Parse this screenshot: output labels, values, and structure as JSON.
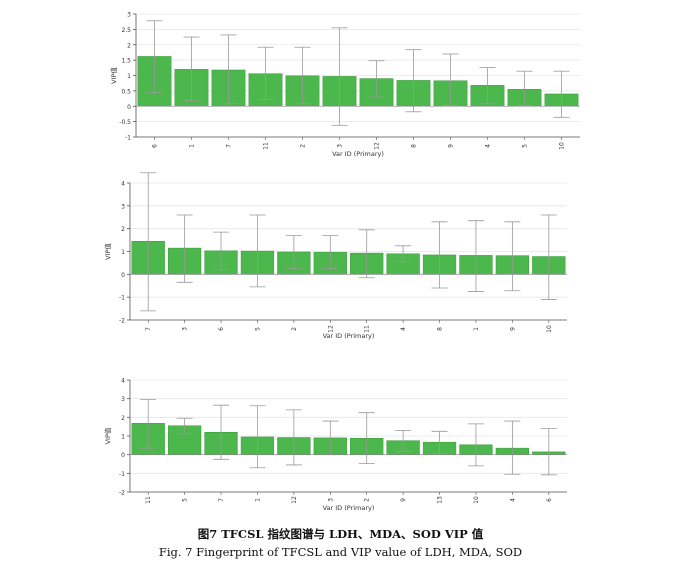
{
  "caption_cn": "图7   TFCSL 指纹图谱与 LDH、MDA、SOD VIP 值",
  "caption_en": "Fig. 7   Fingerprint of TFCSL and VIP value of LDH, MDA, SOD",
  "colors": {
    "bar": "#4cb74c",
    "bar_edge": "#3a9a3a",
    "grid": "#e6e6e6",
    "axis": "#555555",
    "error": "#9a9a9a"
  },
  "chart_data": [
    {
      "type": "bar",
      "categories": [
        "6",
        "1",
        "7",
        "11",
        "2",
        "3",
        "12",
        "8",
        "9",
        "4",
        "5",
        "10"
      ],
      "values": [
        1.62,
        1.2,
        1.18,
        1.06,
        0.99,
        0.97,
        0.9,
        0.84,
        0.83,
        0.68,
        0.55,
        0.4
      ],
      "err_low": [
        0.45,
        0.18,
        0.08,
        0.22,
        0.08,
        -0.62,
        0.3,
        -0.18,
        0.02,
        0.1,
        0.02,
        -0.36
      ],
      "err_high": [
        2.78,
        2.25,
        2.32,
        1.92,
        1.92,
        2.55,
        1.48,
        1.84,
        1.7,
        1.26,
        1.14,
        1.14
      ],
      "ylabel": "VIP值",
      "xlabel": "Var ID (Primary)",
      "ylim": [
        -1,
        3
      ],
      "yticks": [
        "-1",
        "-0.5",
        "0",
        "0.5",
        "1",
        "1.5",
        "2",
        "2.5",
        "3"
      ],
      "grid": true
    },
    {
      "type": "bar",
      "categories": [
        "7",
        "3",
        "6",
        "5",
        "2",
        "12",
        "11",
        "4",
        "8",
        "1",
        "9",
        "10"
      ],
      "values": [
        1.45,
        1.15,
        1.03,
        1.02,
        0.98,
        0.97,
        0.93,
        0.9,
        0.85,
        0.83,
        0.82,
        0.78
      ],
      "err_low": [
        -1.6,
        -0.35,
        0.2,
        -0.55,
        0.25,
        0.25,
        -0.15,
        0.55,
        -0.6,
        -0.75,
        -0.72,
        -1.1
      ],
      "err_high": [
        4.45,
        2.6,
        1.85,
        2.6,
        1.7,
        1.7,
        1.95,
        1.25,
        2.3,
        2.35,
        2.3,
        2.6
      ],
      "ylabel": "VIP值",
      "xlabel": "Var ID (Primary)",
      "ylim": [
        -2,
        4
      ],
      "yticks": [
        "-2",
        "-1",
        "0",
        "1",
        "2",
        "3",
        "4"
      ],
      "grid": true
    },
    {
      "type": "bar",
      "categories": [
        "11",
        "5",
        "7",
        "1",
        "12",
        "3",
        "2",
        "9",
        "13",
        "10",
        "4",
        "6"
      ],
      "values": [
        1.68,
        1.55,
        1.2,
        0.95,
        0.92,
        0.9,
        0.88,
        0.75,
        0.67,
        0.53,
        0.35,
        0.15
      ],
      "err_low": [
        0.35,
        1.12,
        -0.25,
        -0.7,
        -0.55,
        0.0,
        -0.48,
        0.18,
        0.05,
        -0.6,
        -1.05,
        -1.08
      ],
      "err_high": [
        2.95,
        1.95,
        2.65,
        2.62,
        2.4,
        1.8,
        2.25,
        1.3,
        1.25,
        1.65,
        1.8,
        1.4
      ],
      "ylabel": "VIP值",
      "xlabel": "Var ID (Primary)",
      "ylim": [
        -2,
        4
      ],
      "yticks": [
        "-2",
        "-1",
        "0",
        "1",
        "2",
        "3",
        "4"
      ],
      "grid": true
    }
  ]
}
